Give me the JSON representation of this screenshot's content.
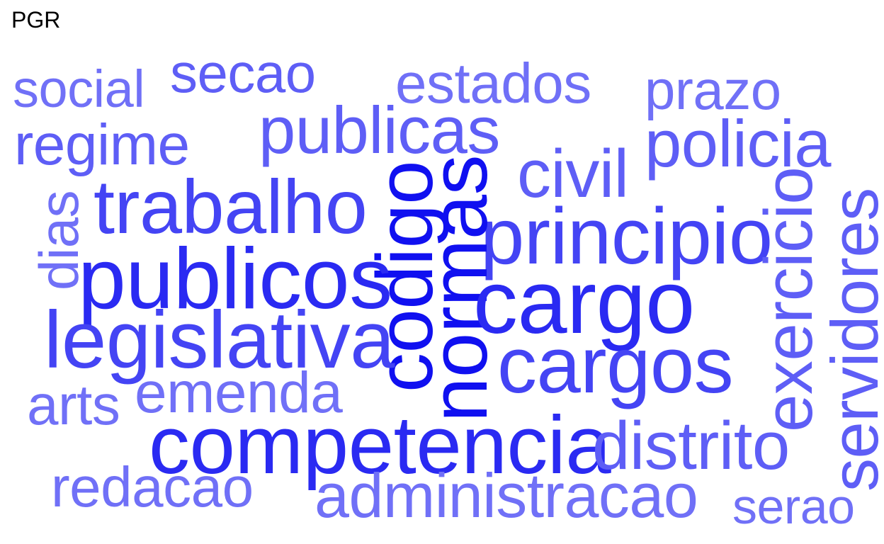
{
  "title": "PGR",
  "colors": {
    "darkest": "#1010f0",
    "dark": "#2a2af2",
    "mid": "#4444f4",
    "light": "#5e5ef6",
    "lightest": "#7070f7"
  },
  "words": [
    {
      "text": "social",
      "tone": "lightest"
    },
    {
      "text": "secao",
      "tone": "light"
    },
    {
      "text": "estados",
      "tone": "lightest"
    },
    {
      "text": "prazo",
      "tone": "lightest"
    },
    {
      "text": "regime",
      "tone": "light"
    },
    {
      "text": "publicas",
      "tone": "light"
    },
    {
      "text": "policia",
      "tone": "light"
    },
    {
      "text": "civil",
      "tone": "light"
    },
    {
      "text": "trabalho",
      "tone": "mid"
    },
    {
      "text": "dias",
      "tone": "lightest"
    },
    {
      "text": "principio",
      "tone": "mid"
    },
    {
      "text": "codigo",
      "tone": "darkest"
    },
    {
      "text": "normas",
      "tone": "darkest"
    },
    {
      "text": "exercicio",
      "tone": "light"
    },
    {
      "text": "servidores",
      "tone": "light"
    },
    {
      "text": "publicos",
      "tone": "dark"
    },
    {
      "text": "cargo",
      "tone": "dark"
    },
    {
      "text": "legislativa",
      "tone": "mid"
    },
    {
      "text": "cargos",
      "tone": "mid"
    },
    {
      "text": "arts",
      "tone": "lightest"
    },
    {
      "text": "emenda",
      "tone": "lightest"
    },
    {
      "text": "competencia",
      "tone": "dark"
    },
    {
      "text": "distrito",
      "tone": "light"
    },
    {
      "text": "redacao",
      "tone": "lightest"
    },
    {
      "text": "administracao",
      "tone": "lightest"
    },
    {
      "text": "serao",
      "tone": "lightest"
    }
  ]
}
